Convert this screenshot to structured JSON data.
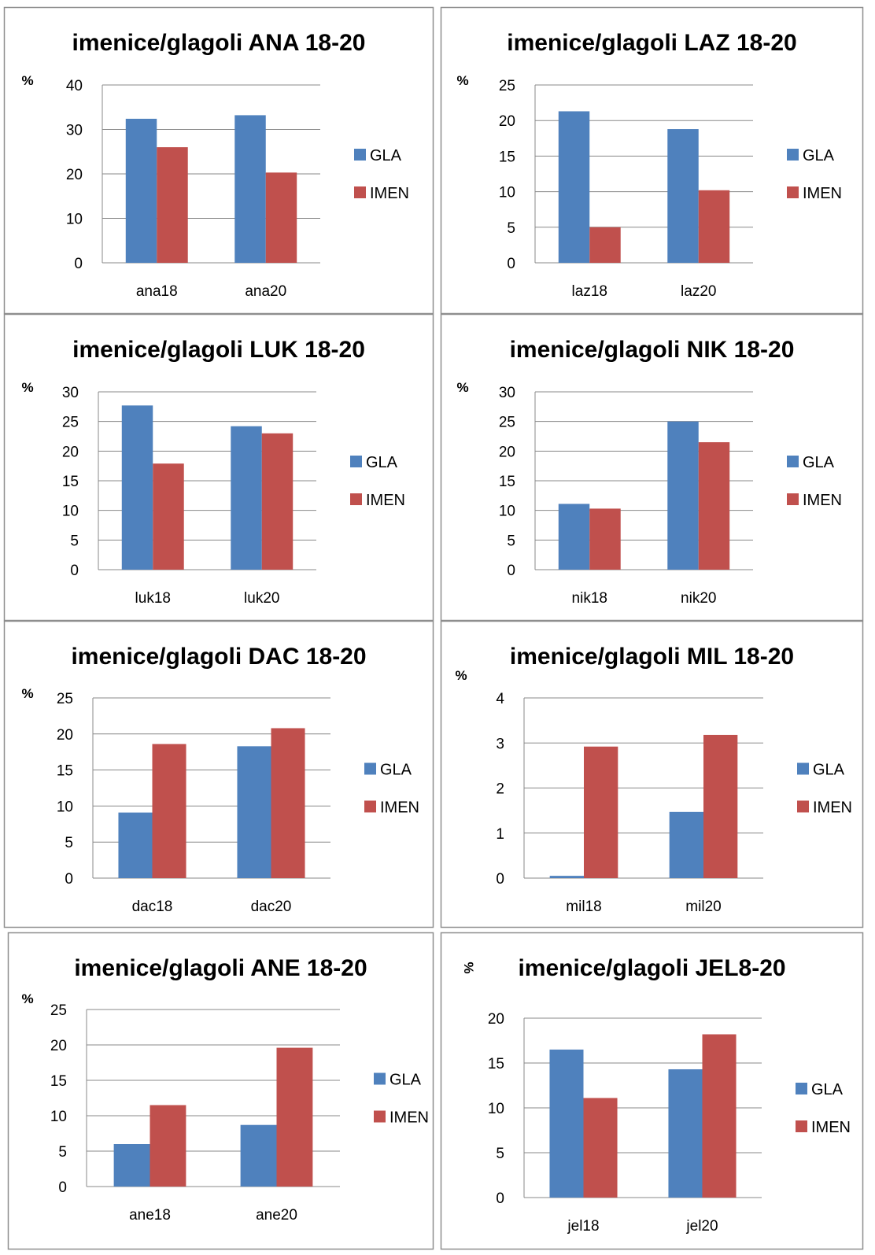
{
  "colors": {
    "GLA": "#4F81BD",
    "IMEN": "#C0504D",
    "gridline": "#888888",
    "border": "#8E8E8E"
  },
  "chart_data": [
    {
      "type": "bar",
      "title": "imenice/glagoli  ANA 18-20",
      "ylabel": "%",
      "categories": [
        "ana18",
        "ana20"
      ],
      "series": [
        {
          "name": "GLA",
          "values": [
            32.4,
            33.2
          ]
        },
        {
          "name": "IMEN",
          "values": [
            26,
            20.3
          ]
        }
      ],
      "ylim": [
        0,
        40
      ],
      "yticks": [
        "0",
        "10",
        "20",
        "30",
        "40"
      ],
      "grid": true,
      "legend": "right"
    },
    {
      "type": "bar",
      "title": "imenice/glagoli  LAZ 18-20",
      "ylabel": "%",
      "categories": [
        "laz18",
        "laz20"
      ],
      "series": [
        {
          "name": "GLA",
          "values": [
            21.3,
            18.8
          ]
        },
        {
          "name": "IMEN",
          "values": [
            5,
            10.2
          ]
        }
      ],
      "ylim": [
        0,
        25
      ],
      "yticks": [
        "0",
        "5",
        "10",
        "15",
        "20",
        "25"
      ],
      "grid": true,
      "legend": "right"
    },
    {
      "type": "bar",
      "title": "imenice/glagoli  LUK 18-20",
      "ylabel": "%",
      "categories": [
        "luk18",
        "luk20"
      ],
      "series": [
        {
          "name": "GLA",
          "values": [
            27.7,
            24.2
          ]
        },
        {
          "name": "IMEN",
          "values": [
            17.9,
            23
          ]
        }
      ],
      "ylim": [
        0,
        30
      ],
      "yticks": [
        "0",
        "5",
        "10",
        "15",
        "20",
        "25",
        "30"
      ],
      "grid": true,
      "legend": "right"
    },
    {
      "type": "bar",
      "title": "imenice/glagoli  NIK 18-20",
      "ylabel": "%",
      "categories": [
        "nik18",
        "nik20"
      ],
      "series": [
        {
          "name": "GLA",
          "values": [
            11.1,
            25
          ]
        },
        {
          "name": "IMEN",
          "values": [
            10.3,
            21.5
          ]
        }
      ],
      "ylim": [
        0,
        30
      ],
      "yticks": [
        "0",
        "5",
        "10",
        "15",
        "20",
        "25",
        "30"
      ],
      "grid": true,
      "legend": "right"
    },
    {
      "type": "bar",
      "title": "imenice/glagoli  DAC 18-20",
      "ylabel": "%",
      "categories": [
        "dac18",
        "dac20"
      ],
      "series": [
        {
          "name": "GLA",
          "values": [
            9.1,
            18.3
          ]
        },
        {
          "name": "IMEN",
          "values": [
            18.6,
            20.8
          ]
        }
      ],
      "ylim": [
        0,
        25
      ],
      "yticks": [
        "0",
        "5",
        "10",
        "15",
        "20",
        "25"
      ],
      "grid": true,
      "legend": "right"
    },
    {
      "type": "bar",
      "title": "imenice/glagoli  MIL 18-20",
      "ylabel": "%",
      "categories": [
        "mil18",
        "mil20"
      ],
      "series": [
        {
          "name": "GLA",
          "values": [
            0.05,
            1.47
          ]
        },
        {
          "name": "IMEN",
          "values": [
            2.92,
            3.18
          ]
        }
      ],
      "ylim": [
        0,
        4
      ],
      "yticks": [
        "0",
        "1",
        "2",
        "3",
        "4"
      ],
      "grid": true,
      "legend": "right"
    },
    {
      "type": "bar",
      "title": "imenice/glagoli ANE 18-20",
      "ylabel": "%",
      "categories": [
        "ane18",
        "ane20"
      ],
      "series": [
        {
          "name": "GLA",
          "values": [
            6,
            8.7
          ]
        },
        {
          "name": "IMEN",
          "values": [
            11.5,
            19.6
          ]
        }
      ],
      "ylim": [
        0,
        25
      ],
      "yticks": [
        "0",
        "5",
        "10",
        "15",
        "20",
        "25"
      ],
      "grid": true,
      "legend": "right"
    },
    {
      "type": "bar",
      "title": "imenice/glagoli JEL8-20",
      "ylabel": "%",
      "categories": [
        "jel18",
        "jel20"
      ],
      "series": [
        {
          "name": "GLA",
          "values": [
            16.5,
            14.3
          ]
        },
        {
          "name": "IMEN",
          "values": [
            11.1,
            18.2
          ]
        }
      ],
      "ylim": [
        0,
        20
      ],
      "yticks": [
        "0",
        "5",
        "10",
        "15",
        "20"
      ],
      "grid": true,
      "legend": "right"
    }
  ]
}
